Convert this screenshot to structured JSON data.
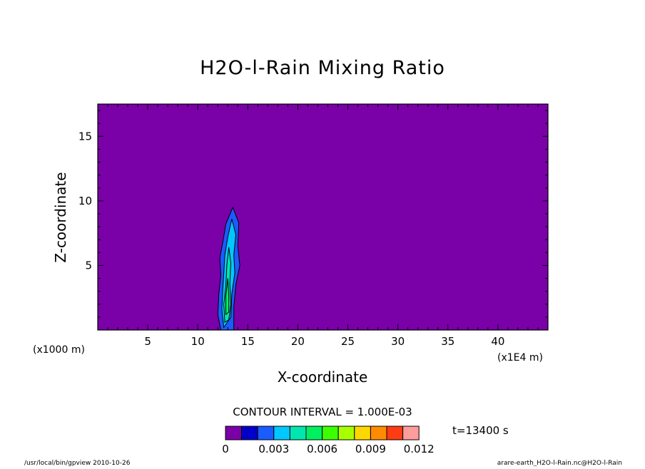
{
  "chart_data": {
    "type": "heatmap",
    "title": "H2O-l-Rain Mixing Ratio",
    "xlabel": "X-coordinate",
    "ylabel": "Z-coordinate",
    "x_scale_note": "(x1000 m)",
    "x_unit_note": "(x1E4 m)",
    "xlim": [
      0,
      45
    ],
    "ylim": [
      0,
      17.5
    ],
    "xticks": [
      5,
      10,
      15,
      20,
      25,
      30,
      35,
      40
    ],
    "yticks": [
      5,
      10,
      15
    ],
    "background_value": 0,
    "contour_interval_label": "CONTOUR INTERVAL = 1.000E-03",
    "time_label": "t=13400 s",
    "colorbar": {
      "levels": [
        0,
        0.001,
        0.002,
        0.003,
        0.004,
        0.005,
        0.006,
        0.007,
        0.008,
        0.009,
        0.01,
        0.011,
        0.012
      ],
      "colors": [
        "#7a00a8",
        "#0000c8",
        "#1a5cff",
        "#00c8ff",
        "#00e6b0",
        "#00f060",
        "#3cff00",
        "#a8ff00",
        "#ffd700",
        "#ff8c00",
        "#ff3c14",
        "#ff9c9c"
      ],
      "tick_labels": [
        "0",
        "0.003",
        "0.006",
        "0.009",
        "0.012"
      ]
    },
    "features": [
      {
        "name": "rain-column",
        "x_center": 13.2,
        "z_bottom": 0,
        "z_top": 9.5,
        "max_value": 0.005
      }
    ]
  },
  "footer": {
    "left": "/usr/local/bin/gpview  2010-10-26",
    "right": "arare-earth_H2O-l-Rain.nc@H2O-l-Rain"
  }
}
